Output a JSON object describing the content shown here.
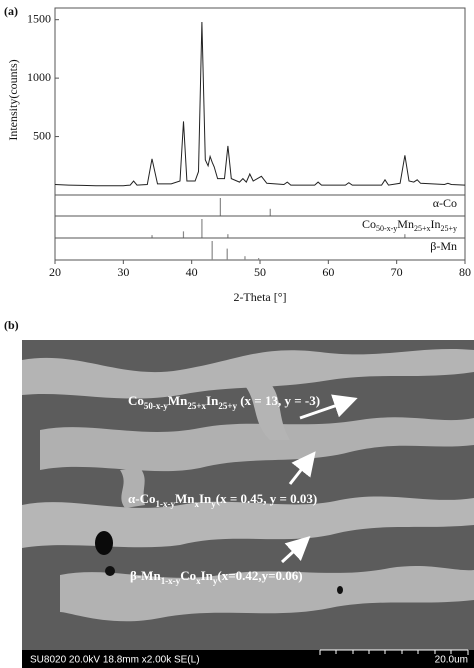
{
  "panel_labels": [
    "(a)",
    "(b)"
  ],
  "chart_data": {
    "type": "line",
    "y_label": "Intensity(counts)",
    "x_label": "2-Theta [°]",
    "x": [
      20,
      22,
      24,
      26,
      28,
      30,
      31,
      31.5,
      32,
      33.5,
      34.2,
      35,
      37,
      38.3,
      38.8,
      39.3,
      40.5,
      41,
      41.5,
      42,
      42.4,
      42.7,
      43.0,
      43.3,
      43.8,
      44.8,
      45.3,
      45.8,
      47,
      47.5,
      48,
      48.5,
      49,
      50.2,
      51,
      53.5,
      54,
      54.5,
      58,
      58.5,
      59,
      62.5,
      63,
      63.5,
      67.8,
      68.3,
      68.8,
      70.5,
      71.2,
      71.8,
      72.5,
      73,
      73.5,
      77,
      77.5,
      78,
      80
    ],
    "values": [
      90,
      85,
      82,
      80,
      80,
      80,
      85,
      120,
      85,
      90,
      310,
      95,
      95,
      120,
      630,
      120,
      120,
      200,
      1480,
      300,
      250,
      330,
      280,
      240,
      140,
      140,
      420,
      140,
      110,
      140,
      110,
      180,
      120,
      160,
      100,
      90,
      110,
      85,
      85,
      110,
      85,
      85,
      105,
      85,
      85,
      130,
      85,
      100,
      340,
      120,
      110,
      130,
      100,
      90,
      100,
      90,
      85
    ],
    "color": "#222222",
    "xlim": [
      20,
      80
    ],
    "xticks": [
      20,
      30,
      40,
      50,
      60,
      70,
      80
    ],
    "ylim": [
      0,
      1600
    ],
    "yticks": [
      500,
      1000,
      1500
    ],
    "references": [
      {
        "name_segments": [
          {
            "t": "α-Co"
          }
        ],
        "positions": [
          44.2,
          51.5
        ],
        "intensities": [
          100,
          40
        ]
      },
      {
        "name_segments": [
          {
            "t": "Co"
          },
          {
            "s": "50-x-y"
          },
          {
            "t": "Mn"
          },
          {
            "s": "25+x"
          },
          {
            "t": "In"
          },
          {
            "s": "25+y"
          }
        ],
        "positions": [
          34.2,
          38.8,
          41.5,
          45.3,
          71.2
        ],
        "intensities": [
          15,
          35,
          100,
          20,
          20
        ]
      },
      {
        "name_segments": [
          {
            "t": "β-Mn"
          }
        ],
        "positions": [
          43.0,
          45.2,
          47.8,
          49.8
        ],
        "intensities": [
          100,
          60,
          20,
          10
        ]
      }
    ]
  },
  "sem": {
    "annotations": [
      {
        "segments": [
          {
            "t": "Co"
          },
          {
            "s": "50-x-y"
          },
          {
            "t": "Mn"
          },
          {
            "s": "25+x"
          },
          {
            "t": "In"
          },
          {
            "s": "25+y"
          },
          {
            "t": " (x = 13, y = -3)"
          }
        ]
      },
      {
        "segments": [
          {
            "t": "α-Co"
          },
          {
            "s": "1-x-y"
          },
          {
            "t": "Mn"
          },
          {
            "s": "x"
          },
          {
            "t": "In"
          },
          {
            "s": "y"
          },
          {
            "t": "(x = 0.45, y = 0.03)"
          }
        ]
      },
      {
        "segments": [
          {
            "t": "β-Mn"
          },
          {
            "s": "1-x-y"
          },
          {
            "t": "Co"
          },
          {
            "s": "x"
          },
          {
            "t": "In"
          },
          {
            "s": "y"
          },
          {
            "t": "(x=0.42,y=0.06)"
          }
        ]
      }
    ],
    "footer": "SU8020 20.0kV 18.8mm x2.00k SE(L)",
    "scale": "20.0um"
  }
}
